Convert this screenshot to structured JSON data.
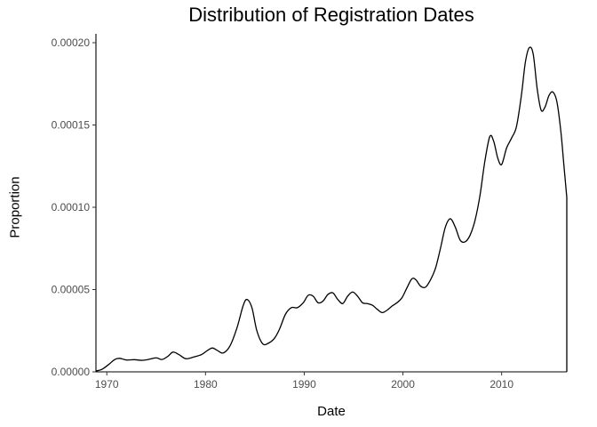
{
  "chart_data": {
    "type": "area",
    "title": "Distribution of Registration Dates",
    "xlabel": "Date",
    "ylabel": "Proportion",
    "xlim": [
      1968.9,
      2016.6
    ],
    "ylim": [
      0,
      0.0002
    ],
    "x_ticks": [
      1970,
      1980,
      1990,
      2000,
      2010
    ],
    "y_ticks": [
      0,
      5e-05,
      0.0001,
      0.00015,
      0.0002
    ],
    "x_tick_labels": [
      "1970",
      "1980",
      "1990",
      "2000",
      "2010"
    ],
    "y_tick_labels": [
      "0.00000",
      "0.00005",
      "0.00010",
      "0.00015",
      "0.00020"
    ],
    "grid": false,
    "legend": "none",
    "line_color": "#000000",
    "fill": "none",
    "series": [
      {
        "x": [
          1968.9,
          1969.5,
          1970.2,
          1970.8,
          1971.3,
          1972.0,
          1972.8,
          1973.5,
          1974.2,
          1975.0,
          1975.6,
          1976.2,
          1976.7,
          1977.3,
          1978.0,
          1978.8,
          1979.6,
          1980.2,
          1980.7,
          1981.2,
          1981.8,
          1982.5,
          1983.2,
          1983.8,
          1984.2,
          1984.7,
          1985.2,
          1985.8,
          1986.4,
          1987.0,
          1987.5,
          1988.1,
          1988.7,
          1989.3,
          1989.9,
          1990.4,
          1990.9,
          1991.4,
          1991.9,
          1992.4,
          1992.9,
          1993.4,
          1993.9,
          1994.4,
          1994.9,
          1995.4,
          1995.9,
          1996.4,
          1996.9,
          1997.4,
          1997.9,
          1998.4,
          1998.9,
          1999.4,
          1999.9,
          2000.4,
          2000.9,
          2001.3,
          2001.8,
          2002.3,
          2002.8,
          2003.3,
          2003.8,
          2004.3,
          2004.8,
          2005.3,
          2005.8,
          2006.3,
          2006.8,
          2007.3,
          2007.8,
          2008.3,
          2008.8,
          2009.2,
          2009.6,
          2010.0,
          2010.5,
          2011.0,
          2011.5,
          2012.0,
          2012.4,
          2012.8,
          2013.2,
          2013.6,
          2014.0,
          2014.4,
          2014.8,
          2015.2,
          2015.6,
          2016.0,
          2016.3,
          2016.6
        ],
        "y": [
          5e-07,
          1.5e-06,
          4.5e-06,
          7.5e-06,
          8.2e-06,
          7.2e-06,
          7.4e-06,
          7e-06,
          7.5e-06,
          8.5e-06,
          7.5e-06,
          9.5e-06,
          1.2e-05,
          1.05e-05,
          8e-06,
          9e-06,
          1.05e-05,
          1.3e-05,
          1.45e-05,
          1.3e-05,
          1.15e-05,
          1.6e-05,
          2.7e-05,
          4e-05,
          4.4e-05,
          3.9e-05,
          2.5e-05,
          1.7e-05,
          1.75e-05,
          2.05e-05,
          2.6e-05,
          3.5e-05,
          3.9e-05,
          3.9e-05,
          4.2e-05,
          4.65e-05,
          4.6e-05,
          4.2e-05,
          4.3e-05,
          4.7e-05,
          4.8e-05,
          4.4e-05,
          4.15e-05,
          4.6e-05,
          4.85e-05,
          4.6e-05,
          4.2e-05,
          4.15e-05,
          4.05e-05,
          3.8e-05,
          3.6e-05,
          3.75e-05,
          4e-05,
          4.2e-05,
          4.5e-05,
          5.1e-05,
          5.65e-05,
          5.6e-05,
          5.2e-05,
          5.15e-05,
          5.6e-05,
          6.3e-05,
          7.5e-05,
          8.8e-05,
          9.3e-05,
          8.8e-05,
          8e-05,
          7.9e-05,
          8.3e-05,
          9.2e-05,
          0.000107,
          0.000128,
          0.000143,
          0.00014,
          0.00013,
          0.000126,
          0.000136,
          0.000142,
          0.000149,
          0.000168,
          0.000188,
          0.000197,
          0.000193,
          0.000172,
          0.000159,
          0.000161,
          0.000168,
          0.00017,
          0.000164,
          0.000146,
          0.000126,
          0.000106
        ]
      }
    ]
  }
}
